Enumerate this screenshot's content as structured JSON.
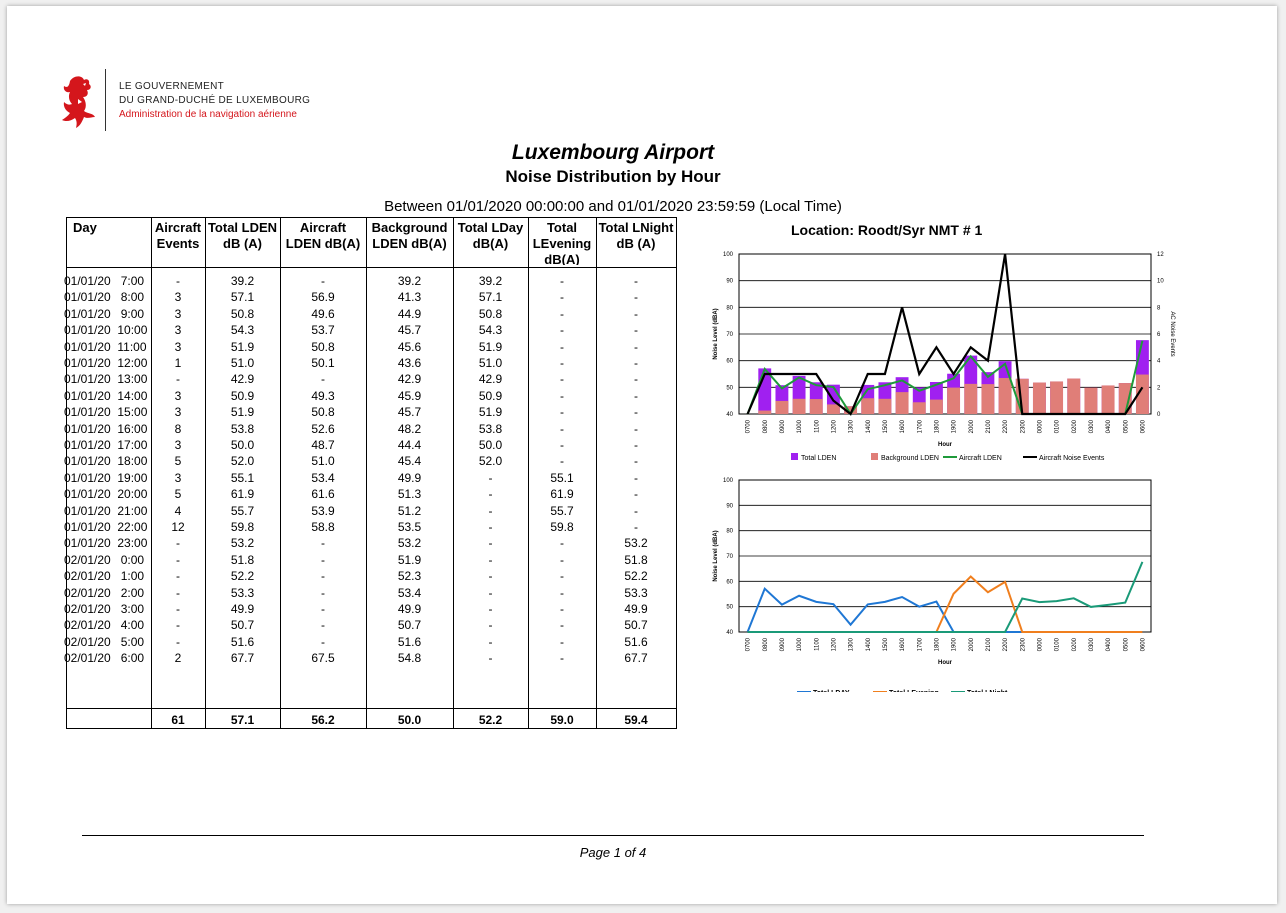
{
  "header": {
    "gov_line1": "LE GOUVERNEMENT",
    "gov_line2": "DU GRAND-DUCHÉ DE LUXEMBOURG",
    "gov_line3": "Administration de la navigation aérienne",
    "logo": "red-lion-icon"
  },
  "report": {
    "title": "Luxembourg Airport",
    "subtitle": "Noise Distribution by Hour",
    "period": "Between 01/01/2020 00:00:00 and 01/01/2020 23:59:59 (Local Time)"
  },
  "table": {
    "headers": [
      "Day",
      "Aircraft Events",
      "Total LDEN dB (A)",
      "Aircraft LDEN dB(A)",
      "Background LDEN dB(A)",
      "Total LDay dB(A)",
      "Total LEvening dB(A)",
      "Total LNight dB (A)"
    ],
    "rows": [
      [
        "01/01/20   7:00",
        "-",
        "39.2",
        "-",
        "39.2",
        "39.2",
        "-",
        "-"
      ],
      [
        "01/01/20   8:00",
        "3",
        "57.1",
        "56.9",
        "41.3",
        "57.1",
        "-",
        "-"
      ],
      [
        "01/01/20   9:00",
        "3",
        "50.8",
        "49.6",
        "44.9",
        "50.8",
        "-",
        "-"
      ],
      [
        "01/01/20  10:00",
        "3",
        "54.3",
        "53.7",
        "45.7",
        "54.3",
        "-",
        "-"
      ],
      [
        "01/01/20  11:00",
        "3",
        "51.9",
        "50.8",
        "45.6",
        "51.9",
        "-",
        "-"
      ],
      [
        "01/01/20  12:00",
        "1",
        "51.0",
        "50.1",
        "43.6",
        "51.0",
        "-",
        "-"
      ],
      [
        "01/01/20  13:00",
        "-",
        "42.9",
        "-",
        "42.9",
        "42.9",
        "-",
        "-"
      ],
      [
        "01/01/20  14:00",
        "3",
        "50.9",
        "49.3",
        "45.9",
        "50.9",
        "-",
        "-"
      ],
      [
        "01/01/20  15:00",
        "3",
        "51.9",
        "50.8",
        "45.7",
        "51.9",
        "-",
        "-"
      ],
      [
        "01/01/20  16:00",
        "8",
        "53.8",
        "52.6",
        "48.2",
        "53.8",
        "-",
        "-"
      ],
      [
        "01/01/20  17:00",
        "3",
        "50.0",
        "48.7",
        "44.4",
        "50.0",
        "-",
        "-"
      ],
      [
        "01/01/20  18:00",
        "5",
        "52.0",
        "51.0",
        "45.4",
        "52.0",
        "-",
        "-"
      ],
      [
        "01/01/20  19:00",
        "3",
        "55.1",
        "53.4",
        "49.9",
        "-",
        "55.1",
        "-"
      ],
      [
        "01/01/20  20:00",
        "5",
        "61.9",
        "61.6",
        "51.3",
        "-",
        "61.9",
        "-"
      ],
      [
        "01/01/20  21:00",
        "4",
        "55.7",
        "53.9",
        "51.2",
        "-",
        "55.7",
        "-"
      ],
      [
        "01/01/20  22:00",
        "12",
        "59.8",
        "58.8",
        "53.5",
        "-",
        "59.8",
        "-"
      ],
      [
        "01/01/20  23:00",
        "-",
        "53.2",
        "-",
        "53.2",
        "-",
        "-",
        "53.2"
      ],
      [
        "02/01/20   0:00",
        "-",
        "51.8",
        "-",
        "51.9",
        "-",
        "-",
        "51.8"
      ],
      [
        "02/01/20   1:00",
        "-",
        "52.2",
        "-",
        "52.3",
        "-",
        "-",
        "52.2"
      ],
      [
        "02/01/20   2:00",
        "-",
        "53.3",
        "-",
        "53.4",
        "-",
        "-",
        "53.3"
      ],
      [
        "02/01/20   3:00",
        "-",
        "49.9",
        "-",
        "49.9",
        "-",
        "-",
        "49.9"
      ],
      [
        "02/01/20   4:00",
        "-",
        "50.7",
        "-",
        "50.7",
        "-",
        "-",
        "50.7"
      ],
      [
        "02/01/20   5:00",
        "-",
        "51.6",
        "-",
        "51.6",
        "-",
        "-",
        "51.6"
      ],
      [
        "02/01/20   6:00",
        "2",
        "67.7",
        "67.5",
        "54.8",
        "-",
        "-",
        "67.7"
      ]
    ],
    "totals": [
      "",
      "61",
      "57.1",
      "56.2",
      "50.0",
      "52.2",
      "59.0",
      "59.4"
    ]
  },
  "location": "Location:  Roodt/Syr    NMT # 1",
  "footer": "Page 1 of 4",
  "chart_data": [
    {
      "type": "bar",
      "categories": [
        "0700",
        "0800",
        "0900",
        "1000",
        "1100",
        "1200",
        "1300",
        "1400",
        "1500",
        "1600",
        "1700",
        "1800",
        "1900",
        "2000",
        "2100",
        "2200",
        "2300",
        "0000",
        "0100",
        "0200",
        "0300",
        "0400",
        "0500",
        "0600"
      ],
      "xlabel": "Hour",
      "ylabel": "Noise Level (dBA)",
      "y2label": "AC Noise Events",
      "ylim": [
        40,
        100
      ],
      "y2lim": [
        0,
        12
      ],
      "grid": true,
      "legend_position": "bottom",
      "series": [
        {
          "name": "Total LDEN",
          "kind": "bar",
          "color": "#a020f0",
          "values": [
            39.2,
            57.1,
            50.8,
            54.3,
            51.9,
            51.0,
            42.9,
            50.9,
            51.9,
            53.8,
            50.0,
            52.0,
            55.1,
            61.9,
            55.7,
            59.8,
            53.2,
            51.8,
            52.2,
            53.3,
            49.9,
            50.7,
            51.6,
            67.7
          ]
        },
        {
          "name": "Background LDEN",
          "kind": "bar",
          "color": "#e07e78",
          "values": [
            39.2,
            41.3,
            44.9,
            45.7,
            45.6,
            43.6,
            42.9,
            45.9,
            45.7,
            48.2,
            44.4,
            45.4,
            49.9,
            51.3,
            51.2,
            53.5,
            53.2,
            51.9,
            52.3,
            53.4,
            49.9,
            50.7,
            51.6,
            54.8
          ]
        },
        {
          "name": "Aircraft LDEN",
          "kind": "line",
          "color": "#1f9a3a",
          "values": [
            40,
            56.9,
            49.6,
            53.7,
            50.8,
            50.1,
            40,
            49.3,
            50.8,
            52.6,
            48.7,
            51.0,
            53.4,
            61.6,
            53.9,
            58.8,
            40,
            40,
            40,
            40,
            40,
            40,
            40,
            67.5
          ]
        },
        {
          "name": "Aircraft Noise Events",
          "kind": "line",
          "axis": "right",
          "color": "#000000",
          "values": [
            0,
            3,
            3,
            3,
            3,
            1,
            0,
            3,
            3,
            8,
            3,
            5,
            3,
            5,
            4,
            12,
            0,
            0,
            0,
            0,
            0,
            0,
            0,
            2
          ]
        }
      ]
    },
    {
      "type": "line",
      "categories": [
        "0700",
        "0800",
        "0900",
        "1000",
        "1100",
        "1200",
        "1300",
        "1400",
        "1500",
        "1600",
        "1700",
        "1800",
        "1900",
        "2000",
        "2100",
        "2200",
        "2300",
        "0000",
        "0100",
        "0200",
        "0300",
        "0400",
        "0500",
        "0600"
      ],
      "xlabel": "Hour",
      "ylabel": "Noise Level (dBA)",
      "ylim": [
        40,
        100
      ],
      "grid": true,
      "legend_position": "bottom",
      "series": [
        {
          "name": "Total LDAY",
          "color": "#1f77d4",
          "values": [
            40,
            57.1,
            50.8,
            54.3,
            51.9,
            51.0,
            42.9,
            50.9,
            51.9,
            53.8,
            50.0,
            52.0,
            40,
            40,
            40,
            40,
            40,
            40,
            40,
            40,
            40,
            40,
            40,
            40
          ]
        },
        {
          "name": "Total LEvening",
          "color": "#f07f1e",
          "values": [
            40,
            40,
            40,
            40,
            40,
            40,
            40,
            40,
            40,
            40,
            40,
            40,
            55.1,
            61.9,
            55.7,
            59.8,
            40,
            40,
            40,
            40,
            40,
            40,
            40,
            40
          ]
        },
        {
          "name": "Total LNight",
          "color": "#1a9a78",
          "values": [
            40,
            40,
            40,
            40,
            40,
            40,
            40,
            40,
            40,
            40,
            40,
            40,
            40,
            40,
            40,
            40,
            53.2,
            51.8,
            52.2,
            53.3,
            49.9,
            50.7,
            51.6,
            67.7
          ]
        }
      ]
    }
  ]
}
